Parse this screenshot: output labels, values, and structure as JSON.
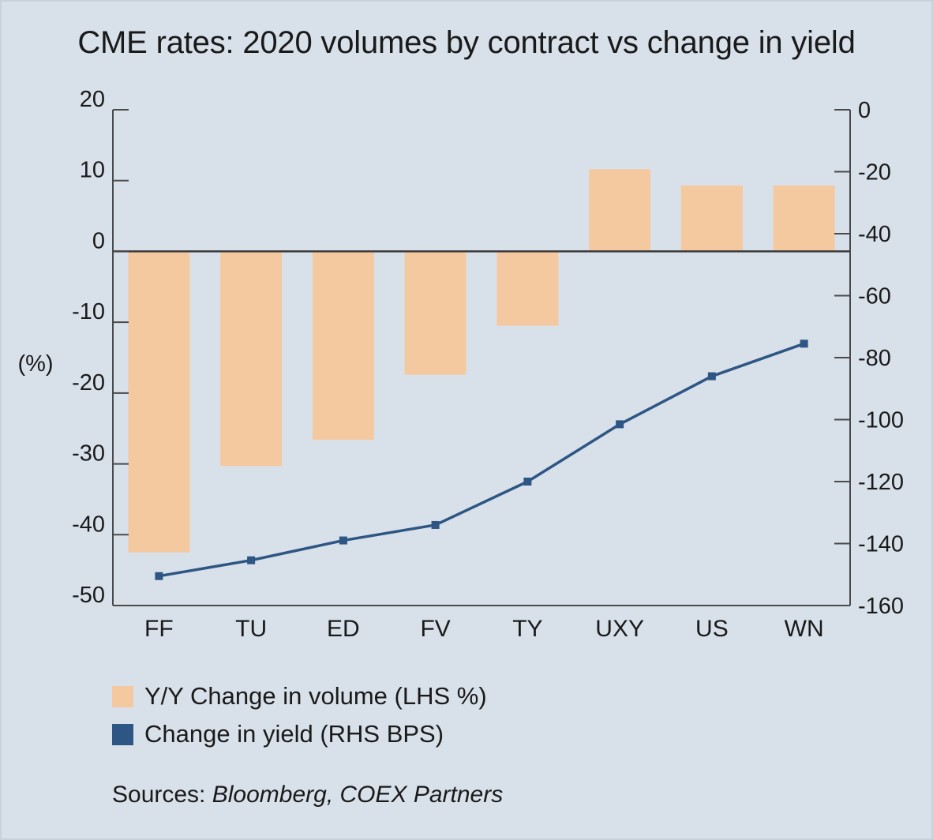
{
  "chart_data": {
    "type": "bar+line",
    "title": "CME rates: 2020 volumes by contract vs change in yield",
    "categories": [
      "FF",
      "TU",
      "ED",
      "FV",
      "TY",
      "UXY",
      "US",
      "WN"
    ],
    "series": [
      {
        "name": "Y/Y Change in volume (LHS %)",
        "type": "bar",
        "axis": "left",
        "color": "#f5c9a0",
        "values": [
          -42.5,
          -30.3,
          -26.6,
          -17.4,
          -10.5,
          11.6,
          9.3,
          9.3
        ]
      },
      {
        "name": "Change in yield (RHS BPS)",
        "type": "line",
        "axis": "right",
        "color": "#2e5684",
        "values": [
          -150.5,
          -145.4,
          -139,
          -134,
          -120,
          -101.5,
          -86,
          -75.5
        ]
      }
    ],
    "left_axis": {
      "label": "(%)",
      "min": -50,
      "max": 20,
      "ticks": [
        20,
        10,
        0,
        -10,
        -20,
        -30,
        -40,
        -50
      ],
      "tick_labels": [
        "20",
        "10",
        "0",
        "-10",
        "-20",
        "-30",
        "-40",
        "-50"
      ]
    },
    "right_axis": {
      "min": -160,
      "max": 0,
      "ticks": [
        0,
        -20,
        -40,
        -60,
        -80,
        -100,
        -120,
        -140,
        -160
      ],
      "tick_labels": [
        "0",
        "-20",
        "-40",
        "-60",
        "-80",
        "-100",
        "-120",
        "-140",
        "-160"
      ]
    },
    "legend_position": "bottom-left"
  },
  "source": {
    "prefix": "Sources: ",
    "names": "Bloomberg, COEX Partners"
  },
  "colors": {
    "background": "#d8e0ea",
    "bar": "#f5c9a0",
    "line": "#2e5684",
    "axis": "#4a4a4a"
  }
}
